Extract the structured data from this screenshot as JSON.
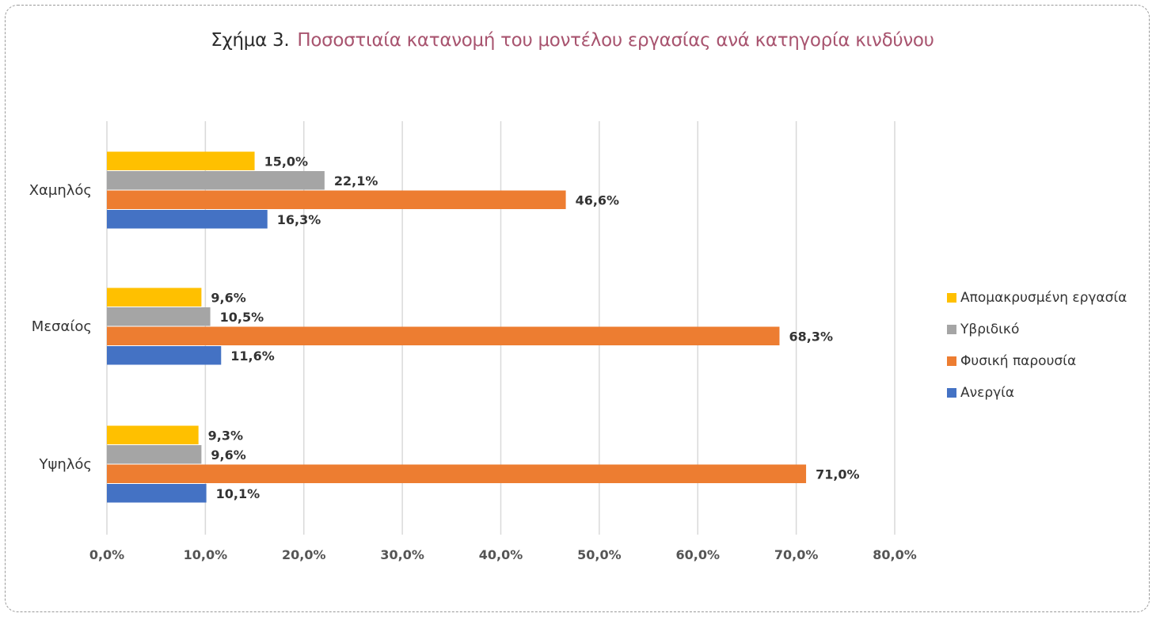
{
  "figure": {
    "prefix": "Σχήμα 3.",
    "title": "Ποσοστιαία κατανομή του μοντέλου εργασίας ανά κατηγορία κινδύνου"
  },
  "chart_data": {
    "type": "bar",
    "orientation": "horizontal",
    "categories": [
      "Χαμηλός",
      "Μεσαίος",
      "Υψηλός"
    ],
    "series": [
      {
        "name": "Απομακρυσμένη εργασία",
        "color": "#FFC000",
        "values": [
          15.0,
          9.6,
          9.3
        ],
        "labels": [
          "15,0%",
          "9,6%",
          "9,3%"
        ]
      },
      {
        "name": "Υβριδικό",
        "color": "#A5A5A5",
        "values": [
          22.1,
          10.5,
          9.6
        ],
        "labels": [
          "22,1%",
          "10,5%",
          "9,6%"
        ]
      },
      {
        "name": "Φυσική παρουσία",
        "color": "#ED7D31",
        "values": [
          46.6,
          68.3,
          71.0
        ],
        "labels": [
          "46,6%",
          "68,3%",
          "71,0%"
        ]
      },
      {
        "name": "Ανεργία",
        "color": "#4472C4",
        "values": [
          16.3,
          11.6,
          10.1
        ],
        "labels": [
          "16,3%",
          "11,6%",
          "10,1%"
        ]
      }
    ],
    "xticks": [
      "0,0%",
      "10,0%",
      "20,0%",
      "30,0%",
      "40,0%",
      "50,0%",
      "60,0%",
      "70,0%",
      "80,0%"
    ],
    "xlim": [
      0,
      80
    ],
    "grid": true,
    "legend_position": "right"
  }
}
